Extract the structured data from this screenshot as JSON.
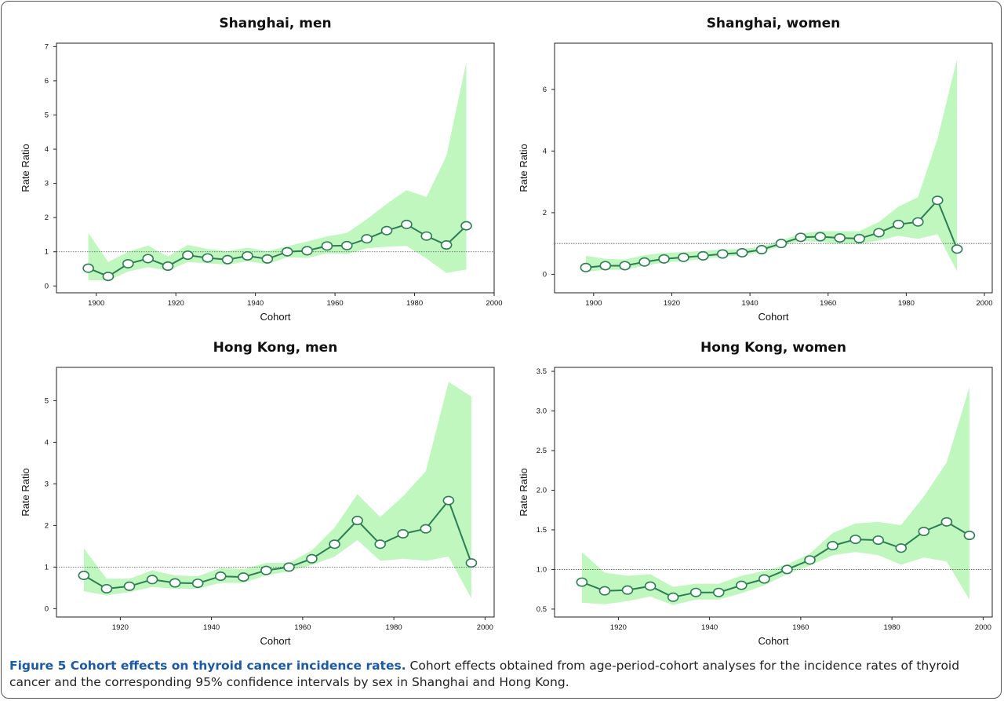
{
  "caption": {
    "label": "Figure 5 Cohort effects on thyroid cancer incidence rates.",
    "text": " Cohort effects obtained from age-period-cohort analyses for the incidence rates of thyroid cancer and the corresponding 95% confidence intervals by sex in Shanghai and Hong Kong."
  },
  "colors": {
    "band": "#bff7bf",
    "line": "#2e7d55",
    "marker_fill": "#ffffff",
    "reference": "#555555"
  },
  "chart_data": [
    {
      "type": "line",
      "title": "Shanghai, men",
      "xlabel": "Cohort",
      "ylabel": "Rate Ratio",
      "xlim": [
        1890,
        2000
      ],
      "ylim": [
        -0.2,
        7.1
      ],
      "xticks": [
        1900,
        1920,
        1940,
        1960,
        1980,
        2000
      ],
      "yticks": [
        0,
        1,
        2,
        3,
        4,
        5,
        6,
        7
      ],
      "reference_line": 1,
      "x": [
        1898,
        1903,
        1908,
        1913,
        1918,
        1923,
        1928,
        1933,
        1938,
        1943,
        1948,
        1953,
        1958,
        1963,
        1968,
        1973,
        1978,
        1983,
        1988,
        1993
      ],
      "y": [
        0.52,
        0.28,
        0.65,
        0.8,
        0.58,
        0.9,
        0.82,
        0.77,
        0.88,
        0.79,
        1.0,
        1.03,
        1.17,
        1.18,
        1.38,
        1.62,
        1.8,
        1.46,
        1.2,
        1.76
      ],
      "lower": [
        0.17,
        0.16,
        0.42,
        0.55,
        0.45,
        0.7,
        0.66,
        0.62,
        0.72,
        0.63,
        0.84,
        0.82,
        0.95,
        0.93,
        1.1,
        1.15,
        1.17,
        0.8,
        0.38,
        0.48
      ],
      "upper": [
        1.55,
        0.7,
        1.0,
        1.18,
        0.86,
        1.2,
        1.08,
        1.02,
        1.12,
        1.02,
        1.16,
        1.3,
        1.45,
        1.55,
        1.95,
        2.4,
        2.8,
        2.6,
        3.8,
        6.55
      ]
    },
    {
      "type": "line",
      "title": "Shanghai, women",
      "xlabel": "Cohort",
      "ylabel": "Rate Ratio",
      "xlim": [
        1890,
        2002
      ],
      "ylim": [
        -0.6,
        7.5
      ],
      "xticks": [
        1900,
        1920,
        1940,
        1960,
        1980,
        2000
      ],
      "yticks": [
        0,
        2,
        4,
        6
      ],
      "reference_line": 1,
      "x": [
        1898,
        1903,
        1908,
        1913,
        1918,
        1923,
        1928,
        1933,
        1938,
        1943,
        1948,
        1953,
        1958,
        1963,
        1968,
        1973,
        1978,
        1983,
        1988,
        1993
      ],
      "y": [
        0.22,
        0.28,
        0.28,
        0.4,
        0.5,
        0.55,
        0.6,
        0.66,
        0.7,
        0.8,
        1.0,
        1.2,
        1.22,
        1.18,
        1.16,
        1.35,
        1.62,
        1.7,
        2.4,
        0.82
      ],
      "lower": [
        0.08,
        0.15,
        0.15,
        0.28,
        0.38,
        0.43,
        0.5,
        0.57,
        0.62,
        0.72,
        0.92,
        1.08,
        1.05,
        1.0,
        0.98,
        1.1,
        1.25,
        1.15,
        1.3,
        0.1
      ],
      "upper": [
        0.6,
        0.5,
        0.48,
        0.62,
        0.7,
        0.72,
        0.76,
        0.8,
        0.82,
        0.9,
        1.1,
        1.32,
        1.4,
        1.4,
        1.4,
        1.7,
        2.2,
        2.5,
        4.4,
        7.0
      ]
    },
    {
      "type": "line",
      "title": "Hong Kong, men",
      "xlabel": "Cohort",
      "ylabel": "Rate Ratio",
      "xlim": [
        1906,
        2002
      ],
      "ylim": [
        -0.2,
        5.8
      ],
      "xticks": [
        1920,
        1940,
        1960,
        1980,
        2000
      ],
      "yticks": [
        0,
        1,
        2,
        3,
        4,
        5
      ],
      "reference_line": 1,
      "x": [
        1912,
        1917,
        1922,
        1927,
        1932,
        1937,
        1942,
        1947,
        1952,
        1957,
        1962,
        1967,
        1972,
        1977,
        1982,
        1987,
        1992,
        1997
      ],
      "y": [
        0.8,
        0.48,
        0.54,
        0.7,
        0.62,
        0.61,
        0.78,
        0.76,
        0.92,
        1.0,
        1.2,
        1.55,
        2.12,
        1.55,
        1.8,
        1.92,
        2.6,
        1.1
      ],
      "lower": [
        0.42,
        0.32,
        0.4,
        0.52,
        0.48,
        0.48,
        0.62,
        0.62,
        0.8,
        0.9,
        1.05,
        1.25,
        1.65,
        1.15,
        1.2,
        1.15,
        1.25,
        0.25
      ],
      "upper": [
        1.45,
        0.72,
        0.72,
        0.92,
        0.8,
        0.78,
        0.98,
        0.95,
        1.1,
        1.1,
        1.4,
        1.95,
        2.75,
        2.2,
        2.7,
        3.3,
        5.45,
        5.1
      ]
    },
    {
      "type": "line",
      "title": "Hong Kong, women",
      "xlabel": "Cohort",
      "ylabel": "Rate Ratio",
      "xlim": [
        1906,
        2002
      ],
      "ylim": [
        0.4,
        3.55
      ],
      "xticks": [
        1920,
        1940,
        1960,
        1980,
        2000
      ],
      "yticks": [
        0.5,
        1.0,
        1.5,
        2.0,
        2.5,
        3.0,
        3.5
      ],
      "reference_line": 1,
      "x": [
        1912,
        1917,
        1922,
        1927,
        1932,
        1937,
        1942,
        1947,
        1952,
        1957,
        1962,
        1967,
        1972,
        1977,
        1982,
        1987,
        1992,
        1997
      ],
      "y": [
        0.84,
        0.73,
        0.74,
        0.79,
        0.65,
        0.71,
        0.71,
        0.8,
        0.88,
        1.0,
        1.12,
        1.3,
        1.38,
        1.37,
        1.27,
        1.48,
        1.6,
        1.43
      ],
      "lower": [
        0.58,
        0.56,
        0.6,
        0.66,
        0.55,
        0.62,
        0.62,
        0.7,
        0.8,
        0.94,
        1.05,
        1.18,
        1.22,
        1.18,
        1.06,
        1.15,
        1.1,
        0.62
      ],
      "upper": [
        1.22,
        0.96,
        0.92,
        0.94,
        0.78,
        0.82,
        0.82,
        0.92,
        0.98,
        1.06,
        1.2,
        1.46,
        1.58,
        1.6,
        1.56,
        1.92,
        2.35,
        3.3
      ]
    }
  ]
}
